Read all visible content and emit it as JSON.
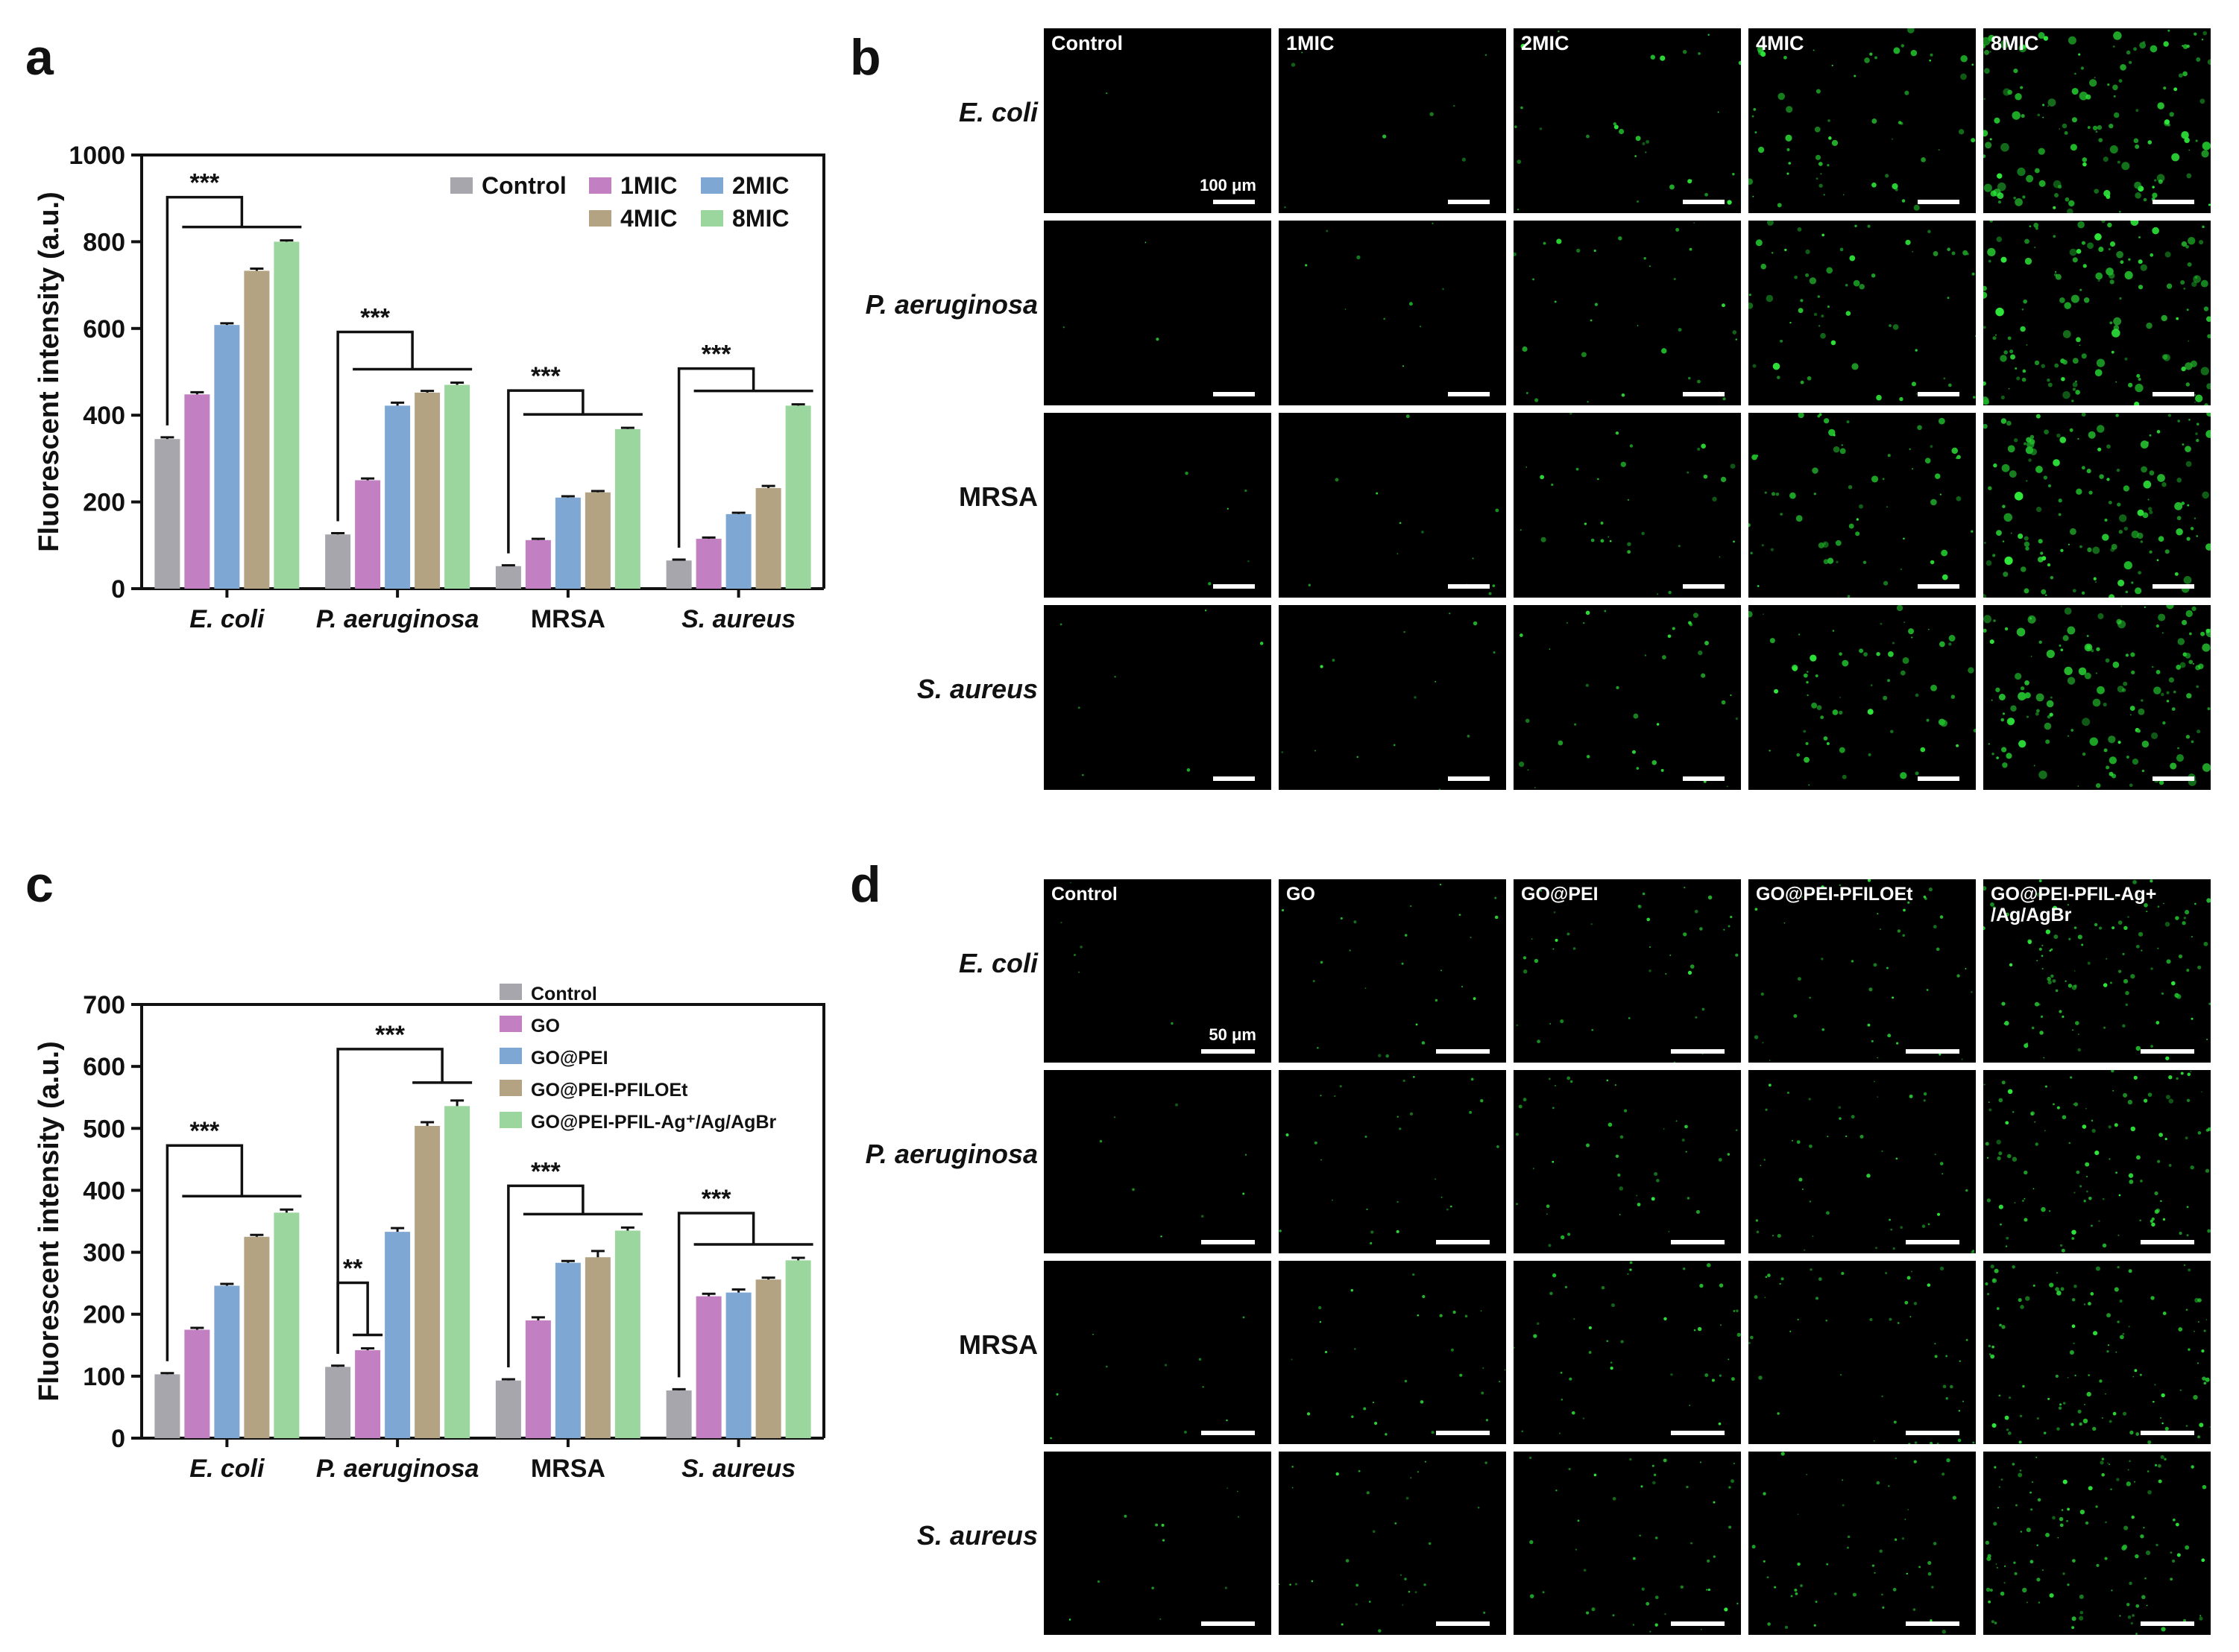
{
  "panels": {
    "a": "a",
    "b": "b",
    "c": "c",
    "d": "d"
  },
  "chart_data": [
    {
      "type": "bar",
      "panel": "a",
      "ylabel": "Fluorescent intensity (a.u.)",
      "xlabel": "",
      "ylim": [
        0,
        1000
      ],
      "yticks": [
        0,
        200,
        400,
        600,
        800,
        1000
      ],
      "categories": [
        "E. coli",
        "P. aeruginosa",
        "MRSA",
        "S. aureus"
      ],
      "series": [
        {
          "name": "Control",
          "color": "#a6a6ac",
          "values": [
            345,
            125,
            52,
            65
          ],
          "errors": [
            4,
            3,
            2,
            2
          ]
        },
        {
          "name": "1MIC",
          "color": "#c27fc2",
          "values": [
            448,
            250,
            112,
            115
          ],
          "errors": [
            5,
            4,
            3,
            3
          ]
        },
        {
          "name": "2MIC",
          "color": "#7fa7d4",
          "values": [
            608,
            422,
            210,
            172
          ],
          "errors": [
            4,
            7,
            3,
            3
          ]
        },
        {
          "name": "4MIC",
          "color": "#b4a383",
          "values": [
            733,
            452,
            222,
            232
          ],
          "errors": [
            5,
            4,
            3,
            5
          ]
        },
        {
          "name": "8MIC",
          "color": "#9bd69e",
          "values": [
            800,
            470,
            368,
            422
          ],
          "errors": [
            3,
            5,
            3,
            3
          ]
        }
      ],
      "significance": [
        "***",
        "***",
        "***",
        "***"
      ],
      "legend_position": "top-right"
    },
    {
      "type": "bar",
      "panel": "c",
      "ylabel": "Fluorescent intensity (a.u.)",
      "xlabel": "",
      "ylim": [
        0,
        700
      ],
      "yticks": [
        0,
        100,
        200,
        300,
        400,
        500,
        600,
        700
      ],
      "categories": [
        "E. coli",
        "P. aeruginosa",
        "MRSA",
        "S. aureus"
      ],
      "series": [
        {
          "name": "Control",
          "color": "#a6a6ac",
          "values": [
            103,
            115,
            93,
            77
          ],
          "errors": [
            2,
            2,
            2,
            2
          ]
        },
        {
          "name": "GO",
          "color": "#c27fc2",
          "values": [
            175,
            142,
            190,
            229
          ],
          "errors": [
            3,
            3,
            5,
            4
          ]
        },
        {
          "name": "GO@PEI",
          "color": "#7fa7d4",
          "values": [
            246,
            333,
            283,
            235
          ],
          "errors": [
            3,
            6,
            3,
            5
          ]
        },
        {
          "name": "GO@PEI-PFILOEt",
          "color": "#b4a383",
          "values": [
            325,
            504,
            292,
            256
          ],
          "errors": [
            3,
            6,
            10,
            3
          ]
        },
        {
          "name": "GO@PEI-PFIL-Ag⁺/Ag/AgBr",
          "color": "#9bd69e",
          "values": [
            364,
            536,
            335,
            287
          ],
          "errors": [
            5,
            9,
            5,
            4
          ]
        }
      ],
      "significance": [
        "***",
        "**",
        "***",
        "***",
        "***"
      ],
      "legend_position": "top-left"
    }
  ],
  "micrographs_b": {
    "columns": [
      "Control",
      "1MIC",
      "2MIC",
      "4MIC",
      "8MIC"
    ],
    "rows": [
      "E. coli",
      "P. aeruginosa",
      "MRSA",
      "S. aureus"
    ],
    "scale_label": "100 μm"
  },
  "micrographs_d": {
    "columns": [
      "Control",
      "GO",
      "GO@PEI",
      "GO@PEI-PFILOEt",
      "GO@PEI-PFIL-Ag+\n/Ag/AgBr"
    ],
    "rows": [
      "E. coli",
      "P. aeruginosa",
      "MRSA",
      "S. aureus"
    ],
    "scale_label": "50 μm"
  }
}
